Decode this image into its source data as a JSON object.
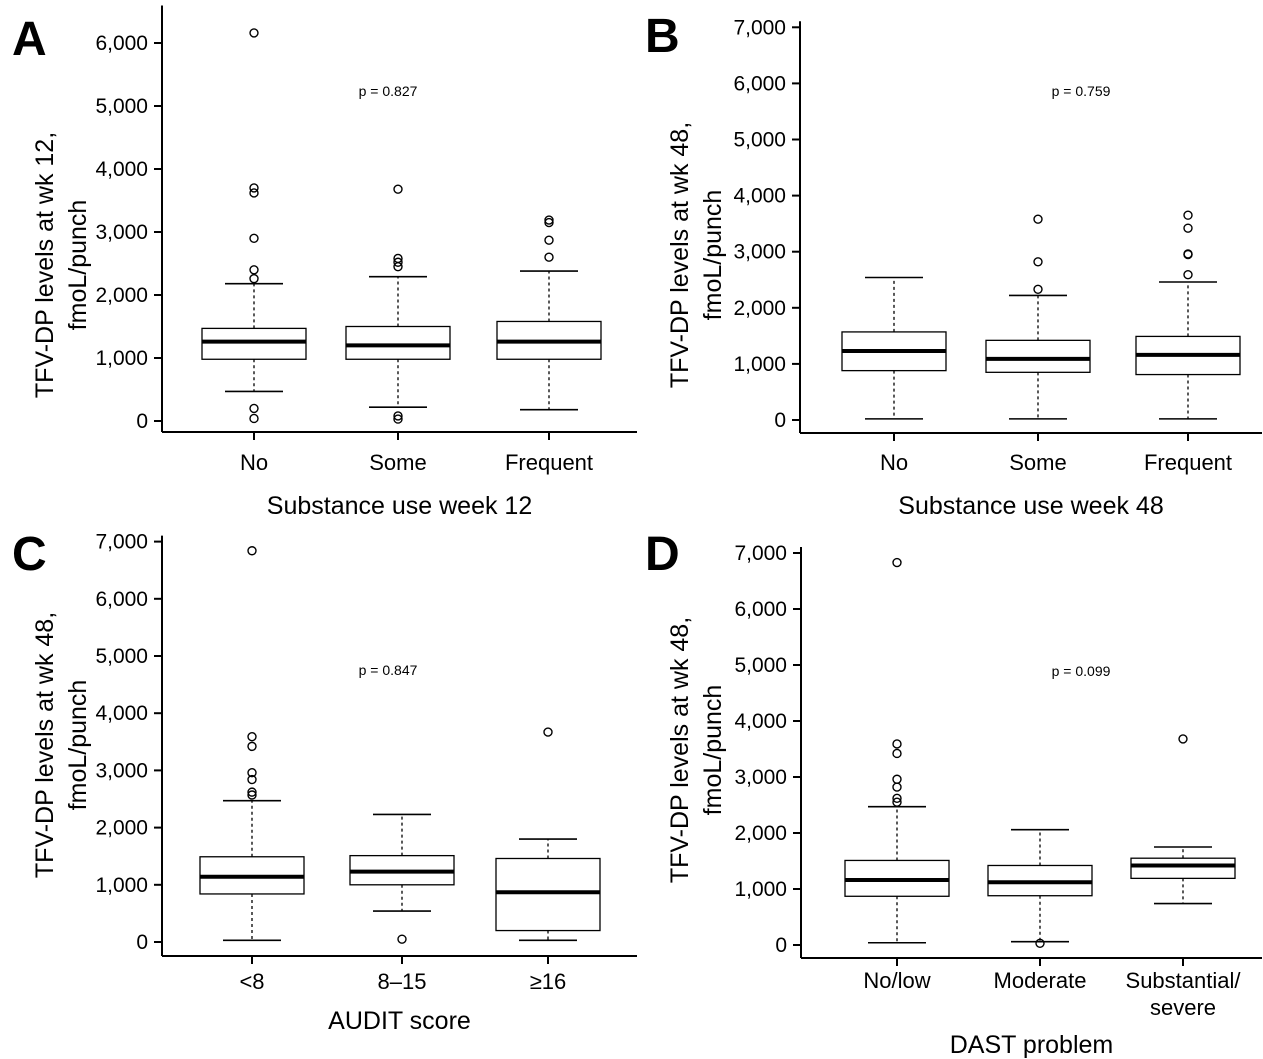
{
  "chart_data": [
    {
      "panel": "A",
      "type": "box",
      "ylabel_line1": "TFV-DP levels at wk 12,",
      "ylabel_line2": "fmoL/punch",
      "xlabel": "Substance use week 12",
      "xlabel2": "",
      "annotation": "p = 0.827",
      "ylim": [
        0,
        6500
      ],
      "yticks": [
        0,
        1000,
        2000,
        3000,
        4000,
        5000,
        6000
      ],
      "ytick_labels": [
        "0",
        "1,000",
        "2,000",
        "3,000",
        "4,000",
        "5,000",
        "6,000"
      ],
      "categories": [
        {
          "label_lines": [
            "No"
          ],
          "q1": 980,
          "median": 1260,
          "q3": 1470,
          "whisker_low": 470,
          "whisker_high": 2180,
          "outliers": [
            40,
            200,
            2260,
            2400,
            2900,
            3620,
            3700,
            6160
          ]
        },
        {
          "label_lines": [
            "Some"
          ],
          "q1": 980,
          "median": 1200,
          "q3": 1500,
          "whisker_low": 220,
          "whisker_high": 2290,
          "outliers": [
            30,
            80,
            2450,
            2520,
            2580,
            3680
          ]
        },
        {
          "label_lines": [
            "Frequent"
          ],
          "q1": 980,
          "median": 1260,
          "q3": 1580,
          "whisker_low": 180,
          "whisker_high": 2380,
          "outliers": [
            2600,
            2870,
            3150,
            3190
          ]
        }
      ]
    },
    {
      "panel": "B",
      "type": "box",
      "ylabel_line1": "TFV-DP levels at wk 48,",
      "ylabel_line2": "fmoL/punch",
      "xlabel": "Substance use week 48",
      "xlabel2": "",
      "annotation": "p = 0.759",
      "ylim": [
        0,
        7000
      ],
      "yticks": [
        0,
        1000,
        2000,
        3000,
        4000,
        5000,
        6000,
        7000
      ],
      "ytick_labels": [
        "0",
        "1,000",
        "2,000",
        "3,000",
        "4,000",
        "5,000",
        "6,000",
        "7,000"
      ],
      "categories": [
        {
          "label_lines": [
            "No"
          ],
          "q1": 880,
          "median": 1230,
          "q3": 1570,
          "whisker_low": 20,
          "whisker_high": 2540,
          "outliers": []
        },
        {
          "label_lines": [
            "Some"
          ],
          "q1": 850,
          "median": 1090,
          "q3": 1420,
          "whisker_low": 20,
          "whisker_high": 2220,
          "outliers": [
            2330,
            2820,
            3580
          ]
        },
        {
          "label_lines": [
            "Frequent"
          ],
          "q1": 810,
          "median": 1160,
          "q3": 1490,
          "whisker_low": 20,
          "whisker_high": 2460,
          "outliers": [
            2590,
            2950,
            2960,
            3420,
            3650
          ]
        }
      ]
    },
    {
      "panel": "C",
      "type": "box",
      "ylabel_line1": "TFV-DP levels at wk 48,",
      "ylabel_line2": "fmoL/punch",
      "xlabel": "AUDIT score",
      "xlabel2": "",
      "annotation": "p = 0.847",
      "ylim": [
        0,
        7000
      ],
      "yticks": [
        0,
        1000,
        2000,
        3000,
        4000,
        5000,
        6000,
        7000
      ],
      "ytick_labels": [
        "0",
        "1,000",
        "2,000",
        "3,000",
        "4,000",
        "5,000",
        "6,000",
        "7,000"
      ],
      "categories": [
        {
          "label_lines": [
            "<8"
          ],
          "q1": 840,
          "median": 1140,
          "q3": 1490,
          "whisker_low": 30,
          "whisker_high": 2470,
          "outliers": [
            2570,
            2620,
            2840,
            2960,
            3420,
            3590,
            6840
          ]
        },
        {
          "label_lines": [
            "8–15"
          ],
          "q1": 1000,
          "median": 1230,
          "q3": 1510,
          "whisker_low": 540,
          "whisker_high": 2230,
          "outliers": [
            50
          ]
        },
        {
          "label_lines": [
            "≥16"
          ],
          "q1": 200,
          "median": 870,
          "q3": 1460,
          "whisker_low": 30,
          "whisker_high": 1800,
          "outliers": [
            3670
          ]
        }
      ]
    },
    {
      "panel": "D",
      "type": "box",
      "ylabel_line1": "TFV-DP levels at wk 48,",
      "ylabel_line2": "fmoL/punch",
      "xlabel": "DAST problem",
      "xlabel2": "",
      "annotation": "p = 0.099",
      "ylim": [
        0,
        7000
      ],
      "yticks": [
        0,
        1000,
        2000,
        3000,
        4000,
        5000,
        6000,
        7000
      ],
      "ytick_labels": [
        "0",
        "1,000",
        "2,000",
        "3,000",
        "4,000",
        "5,000",
        "6,000",
        "7,000"
      ],
      "categories": [
        {
          "label_lines": [
            "No/low"
          ],
          "q1": 870,
          "median": 1160,
          "q3": 1510,
          "whisker_low": 40,
          "whisker_high": 2470,
          "outliers": [
            2550,
            2620,
            2820,
            2960,
            3420,
            3590,
            6830
          ]
        },
        {
          "label_lines": [
            "Moderate"
          ],
          "q1": 880,
          "median": 1120,
          "q3": 1420,
          "whisker_low": 60,
          "whisker_high": 2060,
          "outliers": [
            30
          ]
        },
        {
          "label_lines": [
            "Substantial/",
            "severe"
          ],
          "q1": 1190,
          "median": 1420,
          "q3": 1550,
          "whisker_low": 740,
          "whisker_high": 1750,
          "outliers": [
            3680
          ]
        }
      ]
    }
  ]
}
